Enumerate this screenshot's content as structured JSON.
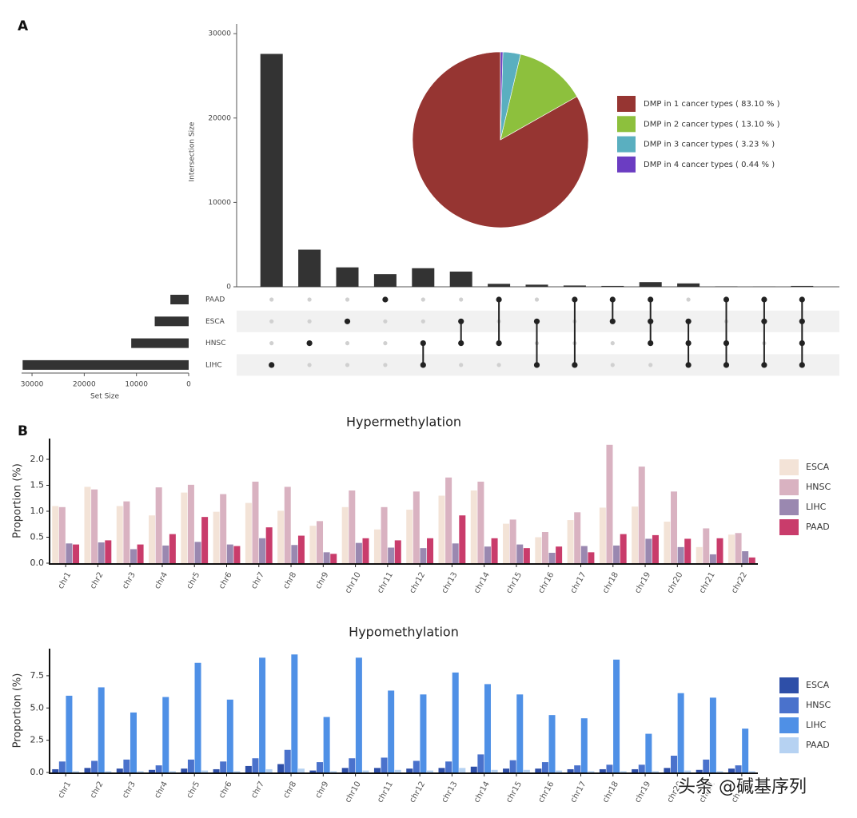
{
  "panels": [
    "A",
    "B"
  ],
  "watermark": "头条 @碱基序列",
  "chart_data": [
    {
      "type": "upset",
      "ylabel": "Intersection Size",
      "color": "#333333",
      "values": [
        27600,
        4400,
        2300,
        1500,
        2200,
        1800,
        350,
        250,
        150,
        100,
        550,
        400,
        50,
        30,
        100
      ],
      "ylim": [
        0,
        32000
      ],
      "yticks": [
        0,
        10000,
        20000,
        30000
      ],
      "sets": [
        "PAAD",
        "ESCA",
        "HNSC",
        "LIHC"
      ],
      "set_sizes": [
        3500,
        6500,
        11000,
        31800
      ],
      "set_size_label": "Set Size",
      "set_size_lim": [
        32000,
        0
      ],
      "set_size_ticks": [
        30000,
        20000,
        10000,
        0
      ],
      "members": [
        [
          3
        ],
        [
          2
        ],
        [
          1
        ],
        [
          0
        ],
        [
          2,
          3
        ],
        [
          1,
          2
        ],
        [
          0,
          2
        ],
        [
          1,
          3
        ],
        [
          0,
          3
        ],
        [
          0,
          1
        ],
        [
          0,
          1,
          2
        ],
        [
          1,
          2,
          3
        ],
        [
          0,
          2,
          3
        ],
        [
          0,
          1,
          3
        ],
        [
          0,
          1,
          2,
          3
        ]
      ]
    },
    {
      "type": "pie",
      "values": [
        83.1,
        13.1,
        3.23,
        0.44
      ],
      "labels": [
        "DMP in  1  cancer types ( 83.10 % )",
        "DMP in  2  cancer types ( 13.10 % )",
        "DMP in  3  cancer types ( 3.23 % )",
        "DMP in  4  cancer types ( 0.44 % )"
      ],
      "colors": [
        "#963532",
        "#8dc03d",
        "#5aafc0",
        "#6b3dc2"
      ],
      "legend": "right"
    },
    {
      "type": "bar",
      "title": "Hypermethylation",
      "ylabel": "Proportion (%)",
      "legend": "right",
      "grid": false,
      "categories": [
        "chr1",
        "chr2",
        "chr3",
        "chr4",
        "chr5",
        "chr6",
        "chr7",
        "chr8",
        "chr9",
        "chr10",
        "chr11",
        "chr12",
        "chr13",
        "chr14",
        "chr15",
        "chr16",
        "chr17",
        "chr18",
        "chr19",
        "chr20",
        "chr21",
        "chr22"
      ],
      "ylim": [
        0,
        2.4
      ],
      "yticks": [
        {
          "value": 0,
          "label": "0.0"
        },
        {
          "value": 0.5,
          "label": "0.5"
        },
        {
          "value": 1,
          "label": "1.0"
        },
        {
          "value": 1.5,
          "label": "1.5"
        },
        {
          "value": 2,
          "label": "2.0"
        }
      ],
      "series": [
        {
          "name": "ESCA",
          "color": "#f3e3d7",
          "values": [
            1.1,
            1.47,
            1.1,
            0.92,
            1.36,
            0.99,
            1.16,
            1.01,
            0.72,
            1.08,
            0.65,
            1.03,
            1.3,
            1.4,
            0.76,
            0.5,
            0.83,
            1.07,
            1.09,
            0.8,
            0.31,
            0.55
          ]
        },
        {
          "name": "HNSC",
          "color": "#d9b2c1",
          "values": [
            1.08,
            1.42,
            1.19,
            1.46,
            1.51,
            1.33,
            1.57,
            1.47,
            0.81,
            1.4,
            1.08,
            1.38,
            1.65,
            1.57,
            0.84,
            0.6,
            0.98,
            2.28,
            1.86,
            1.38,
            0.67,
            0.58
          ]
        },
        {
          "name": "LIHC",
          "color": "#9a88b0",
          "values": [
            0.38,
            0.4,
            0.27,
            0.34,
            0.41,
            0.36,
            0.48,
            0.35,
            0.21,
            0.39,
            0.3,
            0.29,
            0.38,
            0.32,
            0.36,
            0.2,
            0.33,
            0.34,
            0.47,
            0.31,
            0.17,
            0.23
          ]
        },
        {
          "name": "PAAD",
          "color": "#c93c6b",
          "values": [
            0.36,
            0.44,
            0.36,
            0.56,
            0.89,
            0.33,
            0.69,
            0.53,
            0.18,
            0.48,
            0.44,
            0.48,
            0.92,
            0.48,
            0.29,
            0.32,
            0.21,
            0.56,
            0.54,
            0.47,
            0.48,
            0.11
          ]
        }
      ]
    },
    {
      "type": "bar",
      "title": "Hypomethylation",
      "ylabel": "Proportion (%)",
      "legend": "right",
      "grid": false,
      "categories": [
        "chr1",
        "chr2",
        "chr3",
        "chr4",
        "chr5",
        "chr6",
        "chr7",
        "chr8",
        "chr9",
        "chr10",
        "chr11",
        "chr12",
        "chr13",
        "chr14",
        "chr15",
        "chr16",
        "chr17",
        "chr18",
        "chr19",
        "chr20",
        "chr21",
        "chr22"
      ],
      "ylim": [
        0,
        9.6
      ],
      "yticks": [
        {
          "value": 0,
          "label": "0.0"
        },
        {
          "value": 2.5,
          "label": "2.5"
        },
        {
          "value": 5,
          "label": "5.0"
        },
        {
          "value": 7.5,
          "label": "7.5"
        }
      ],
      "series": [
        {
          "name": "ESCA",
          "color": "#2e4fa8",
          "values": [
            0.25,
            0.35,
            0.3,
            0.2,
            0.3,
            0.25,
            0.5,
            0.65,
            0.15,
            0.35,
            0.35,
            0.3,
            0.35,
            0.45,
            0.3,
            0.3,
            0.25,
            0.25,
            0.25,
            0.35,
            0.2,
            0.3
          ]
        },
        {
          "name": "HNSC",
          "color": "#4a72cc",
          "values": [
            0.85,
            0.9,
            1.0,
            0.55,
            1.0,
            0.85,
            1.1,
            1.75,
            0.8,
            1.1,
            1.15,
            0.9,
            0.85,
            1.4,
            0.95,
            0.8,
            0.55,
            0.6,
            0.6,
            1.3,
            1.0,
            0.55
          ]
        },
        {
          "name": "LIHC",
          "color": "#4f90e6",
          "values": [
            5.95,
            6.6,
            4.65,
            5.85,
            8.5,
            5.65,
            8.9,
            9.15,
            4.3,
            8.9,
            6.35,
            6.05,
            7.75,
            6.85,
            6.05,
            4.45,
            4.2,
            8.75,
            3.0,
            6.15,
            5.8,
            3.4
          ]
        },
        {
          "name": "PAAD",
          "color": "#b6d2f2",
          "values": [
            0.1,
            0.1,
            0.1,
            0.1,
            0.15,
            0.1,
            0.25,
            0.3,
            0.1,
            0.15,
            0.2,
            0.15,
            0.35,
            0.2,
            0.2,
            0.15,
            0.1,
            0.1,
            0.1,
            0.15,
            0.1,
            0.1
          ]
        }
      ]
    }
  ]
}
